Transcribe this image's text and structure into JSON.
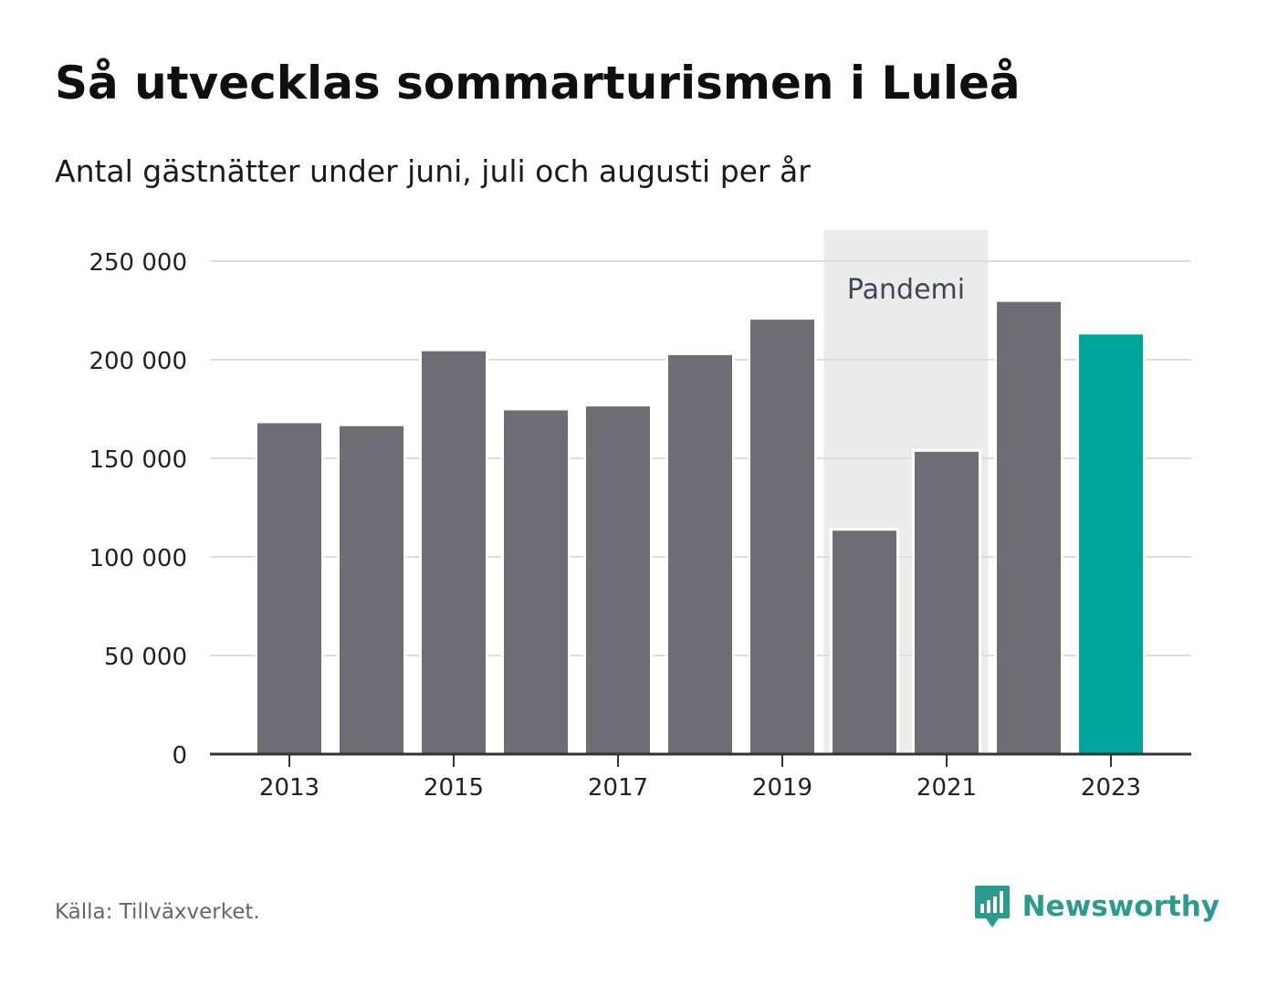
{
  "title": "Så utvecklas sommarturismen i Luleå",
  "subtitle": "Antal gästnätter under juni, juli och augusti per år",
  "source": "Källa: Tillväxverket.",
  "brand": {
    "name": "Newsworthy",
    "icon": "newsworthy-logo-icon",
    "color": "#2c9a8e"
  },
  "colors": {
    "bar": "#6e6d73",
    "highlight": "#00a59b",
    "grid": "#dddddd",
    "axis": "#333333",
    "pandemic_band": "#ececec"
  },
  "chart_data": {
    "type": "bar",
    "categories": [
      "2013",
      "2014",
      "2015",
      "2016",
      "2017",
      "2018",
      "2019",
      "2020",
      "2021",
      "2022",
      "2023"
    ],
    "values": [
      168500,
      167000,
      205000,
      175000,
      177000,
      203000,
      221000,
      114000,
      154000,
      230000,
      213500
    ],
    "highlight_category": "2023",
    "x_tick_labels": [
      "2013",
      "2015",
      "2017",
      "2019",
      "2021",
      "2023"
    ],
    "y_ticks": [
      0,
      50000,
      100000,
      150000,
      200000,
      250000
    ],
    "y_tick_labels": [
      "0",
      "50 000",
      "100 000",
      "150 000",
      "200 000",
      "250 000"
    ],
    "ylim": [
      0,
      250000
    ],
    "grid": true,
    "annotations": [
      {
        "label": "Pandemi",
        "from": "2020",
        "to": "2021"
      }
    ]
  }
}
